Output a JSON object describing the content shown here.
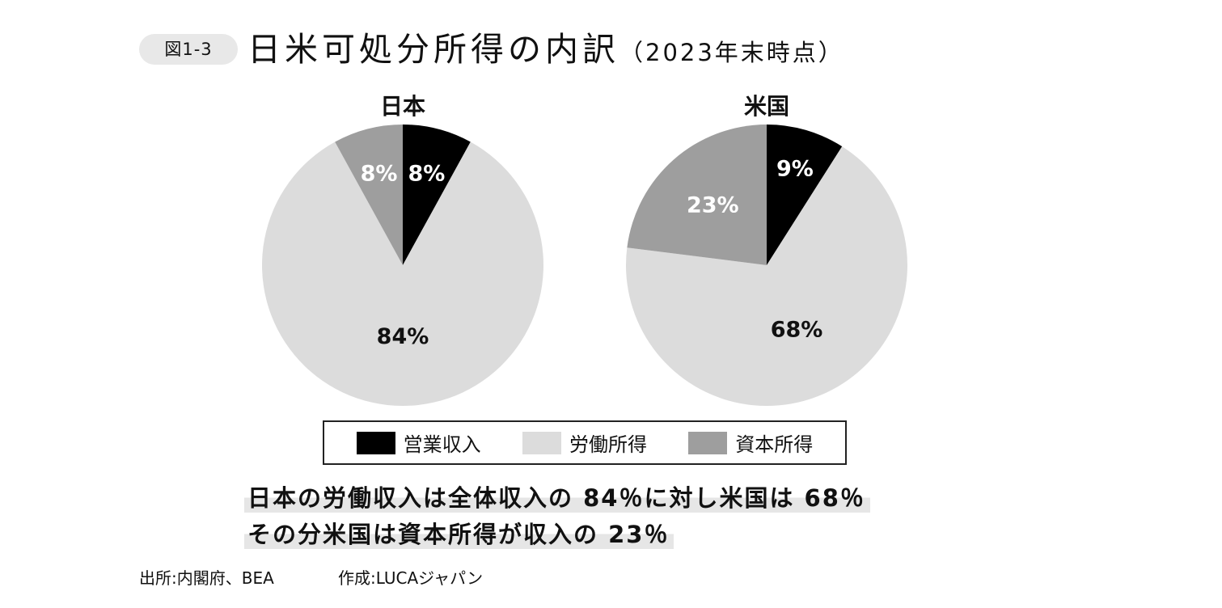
{
  "figure": {
    "badge": "図1-3",
    "title": "日米可処分所得の内訳",
    "title_suffix": "（2023年末時点）"
  },
  "chart_data": [
    {
      "type": "pie",
      "title": "日本",
      "categories": [
        "営業収入",
        "労働所得",
        "資本所得"
      ],
      "values": [
        8,
        84,
        8
      ],
      "labels": [
        "8%",
        "84%",
        "8%"
      ],
      "colors": [
        "#000000",
        "#dcdcdc",
        "#9e9e9e"
      ],
      "label_colors": [
        "#ffffff",
        "#111111",
        "#ffffff"
      ]
    },
    {
      "type": "pie",
      "title": "米国",
      "categories": [
        "営業収入",
        "労働所得",
        "資本所得"
      ],
      "values": [
        9,
        68,
        23
      ],
      "labels": [
        "9%",
        "68%",
        "23%"
      ],
      "colors": [
        "#000000",
        "#dcdcdc",
        "#9e9e9e"
      ],
      "label_colors": [
        "#ffffff",
        "#111111",
        "#ffffff"
      ]
    }
  ],
  "legend": {
    "items": [
      {
        "label": "営業収入",
        "color": "#000000"
      },
      {
        "label": "労働所得",
        "color": "#dcdcdc"
      },
      {
        "label": "資本所得",
        "color": "#9e9e9e"
      }
    ]
  },
  "notes": {
    "line1": "日本の労働収入は全体収入の 84％に対し米国は 68％",
    "line2": "その分米国は資本所得が収入の 23％"
  },
  "footer": {
    "source": "出所:内閣府、BEA",
    "credit": "作成:LUCAジャパン"
  }
}
